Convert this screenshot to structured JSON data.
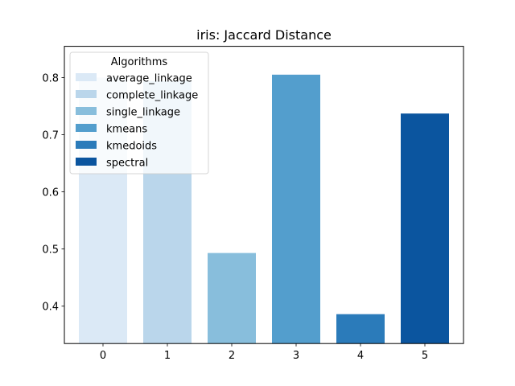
{
  "chart_data": {
    "type": "bar",
    "title": "iris: Jaccard Distance",
    "xlabel": "",
    "ylabel": "",
    "categories": [
      "0",
      "1",
      "2",
      "3",
      "4",
      "5"
    ],
    "series": [
      {
        "name": "average_linkage",
        "index": 0,
        "value": 0.8,
        "color": "#dbe9f6"
      },
      {
        "name": "complete_linkage",
        "index": 1,
        "value": 0.794,
        "color": "#bad6eb"
      },
      {
        "name": "single_linkage",
        "index": 2,
        "value": 0.493,
        "color": "#88bedc"
      },
      {
        "name": "kmeans",
        "index": 3,
        "value": 0.805,
        "color": "#539ecd"
      },
      {
        "name": "kmedoids",
        "index": 4,
        "value": 0.386,
        "color": "#2b7bba"
      },
      {
        "name": "spectral",
        "index": 5,
        "value": 0.737,
        "color": "#0b559f"
      }
    ],
    "ylim": [
      0.3346,
      0.8546
    ],
    "yticks": [
      "0.4",
      "0.5",
      "0.6",
      "0.7",
      "0.8"
    ],
    "grid": false,
    "legend": {
      "title": "Algorithms",
      "placement": "top-left"
    }
  }
}
